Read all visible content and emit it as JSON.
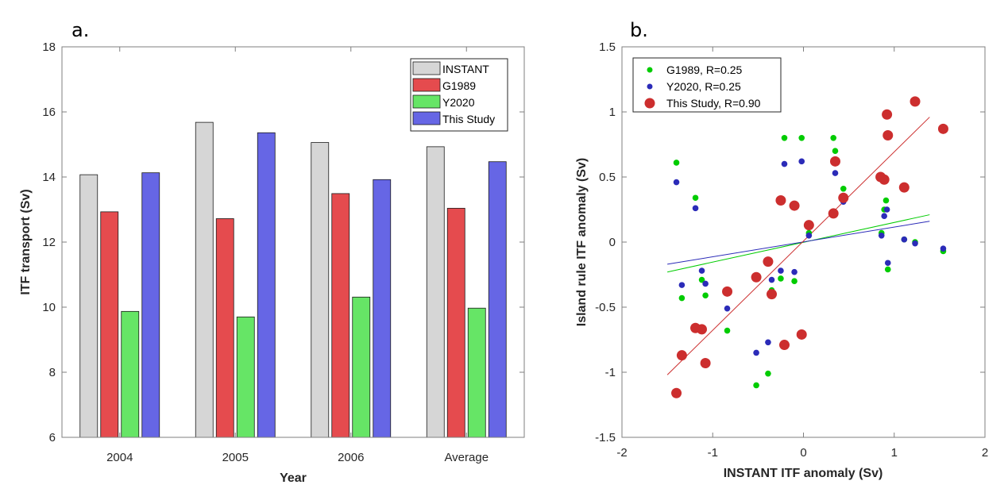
{
  "chart_data": [
    {
      "type": "bar",
      "panel_label": "a.",
      "title": "",
      "xlabel": "Year",
      "ylabel": "ITF transport (Sv)",
      "ylim": [
        6,
        18
      ],
      "yticks": [
        6,
        8,
        10,
        12,
        14,
        16,
        18
      ],
      "categories": [
        "2004",
        "2005",
        "2006",
        "Average"
      ],
      "series": [
        {
          "name": "INSTANT",
          "color": "#d6d6d6",
          "values": [
            14.07,
            15.68,
            15.06,
            14.93
          ]
        },
        {
          "name": "G1989",
          "color": "#e54b4e",
          "values": [
            12.93,
            12.72,
            13.49,
            13.04
          ]
        },
        {
          "name": "Y2020",
          "color": "#66e566",
          "values": [
            9.87,
            9.7,
            10.31,
            9.97
          ]
        },
        {
          "name": "This Study",
          "color": "#6666e5",
          "values": [
            14.13,
            15.36,
            13.92,
            14.47
          ]
        }
      ],
      "legend": "top-right",
      "grid": false
    },
    {
      "type": "scatter",
      "panel_label": "b.",
      "title": "",
      "xlabel": "INSTANT ITF anomaly (Sv)",
      "ylabel": "Island rule ITF anomaly (Sv)",
      "xlim": [
        -2,
        2
      ],
      "ylim": [
        -1.5,
        1.5
      ],
      "xticks": [
        -2,
        -1,
        0,
        1,
        2
      ],
      "yticks": [
        -1.5,
        -1,
        -0.5,
        0,
        0.5,
        1,
        1.5
      ],
      "legend": "top-left",
      "grid": false,
      "series": [
        {
          "name": "G1989, R=0.25",
          "color": "#00cc00",
          "marker": "small-dot",
          "x": [
            -1.4,
            -1.19,
            -1.34,
            -1.12,
            -1.08,
            -0.84,
            -0.52,
            -0.39,
            -0.35,
            -0.25,
            -0.1,
            -0.21,
            -0.02,
            0.33,
            0.35,
            0.44,
            0.06,
            0.91,
            0.89,
            0.86,
            1.54,
            0.93,
            1.11,
            1.23
          ],
          "y": [
            0.61,
            0.34,
            -0.43,
            -0.29,
            -0.41,
            -0.68,
            -1.1,
            -1.01,
            -0.37,
            -0.28,
            -0.3,
            0.8,
            0.8,
            0.8,
            0.7,
            0.41,
            0.07,
            0.32,
            0.25,
            0.07,
            -0.07,
            -0.21,
            0.02,
            0.0
          ],
          "fit": {
            "x": [
              -1.5,
              1.39
            ],
            "y": [
              -0.23,
              0.21
            ]
          }
        },
        {
          "name": "Y2020, R=0.25",
          "color": "#2b2bb8",
          "marker": "small-dot",
          "x": [
            -1.4,
            -1.19,
            -1.34,
            -1.12,
            -1.08,
            -0.84,
            -0.52,
            -0.39,
            -0.35,
            -0.25,
            -0.1,
            -0.21,
            -0.02,
            0.35,
            0.44,
            0.06,
            0.92,
            0.89,
            0.86,
            1.11,
            1.23,
            1.54,
            0.93
          ],
          "y": [
            0.46,
            0.26,
            -0.33,
            -0.22,
            -0.32,
            -0.51,
            -0.85,
            -0.77,
            -0.29,
            -0.22,
            -0.23,
            0.6,
            0.62,
            0.53,
            0.31,
            0.05,
            0.25,
            0.2,
            0.05,
            0.02,
            -0.01,
            -0.05,
            -0.16
          ],
          "fit": {
            "x": [
              -1.5,
              1.39
            ],
            "y": [
              -0.17,
              0.16
            ]
          }
        },
        {
          "name": "This Study, R=0.90",
          "color": "#cc2e2e",
          "marker": "large-dot",
          "x": [
            -1.4,
            -1.34,
            -1.19,
            -1.12,
            -1.08,
            -0.84,
            -0.52,
            -0.39,
            -0.35,
            -0.21,
            -0.02,
            -0.25,
            -0.1,
            0.06,
            0.33,
            0.35,
            0.44,
            0.85,
            0.89,
            1.11,
            0.92,
            0.93,
            1.23,
            1.54
          ],
          "y": [
            -1.16,
            -0.87,
            -0.66,
            -0.67,
            -0.93,
            -0.38,
            -0.27,
            -0.15,
            -0.4,
            -0.79,
            -0.71,
            0.32,
            0.28,
            0.13,
            0.22,
            0.62,
            0.34,
            0.5,
            0.48,
            0.42,
            0.98,
            0.82,
            1.08,
            0.87
          ],
          "fit": {
            "x": [
              -1.5,
              1.39
            ],
            "y": [
              -1.02,
              0.96
            ]
          }
        }
      ]
    }
  ]
}
